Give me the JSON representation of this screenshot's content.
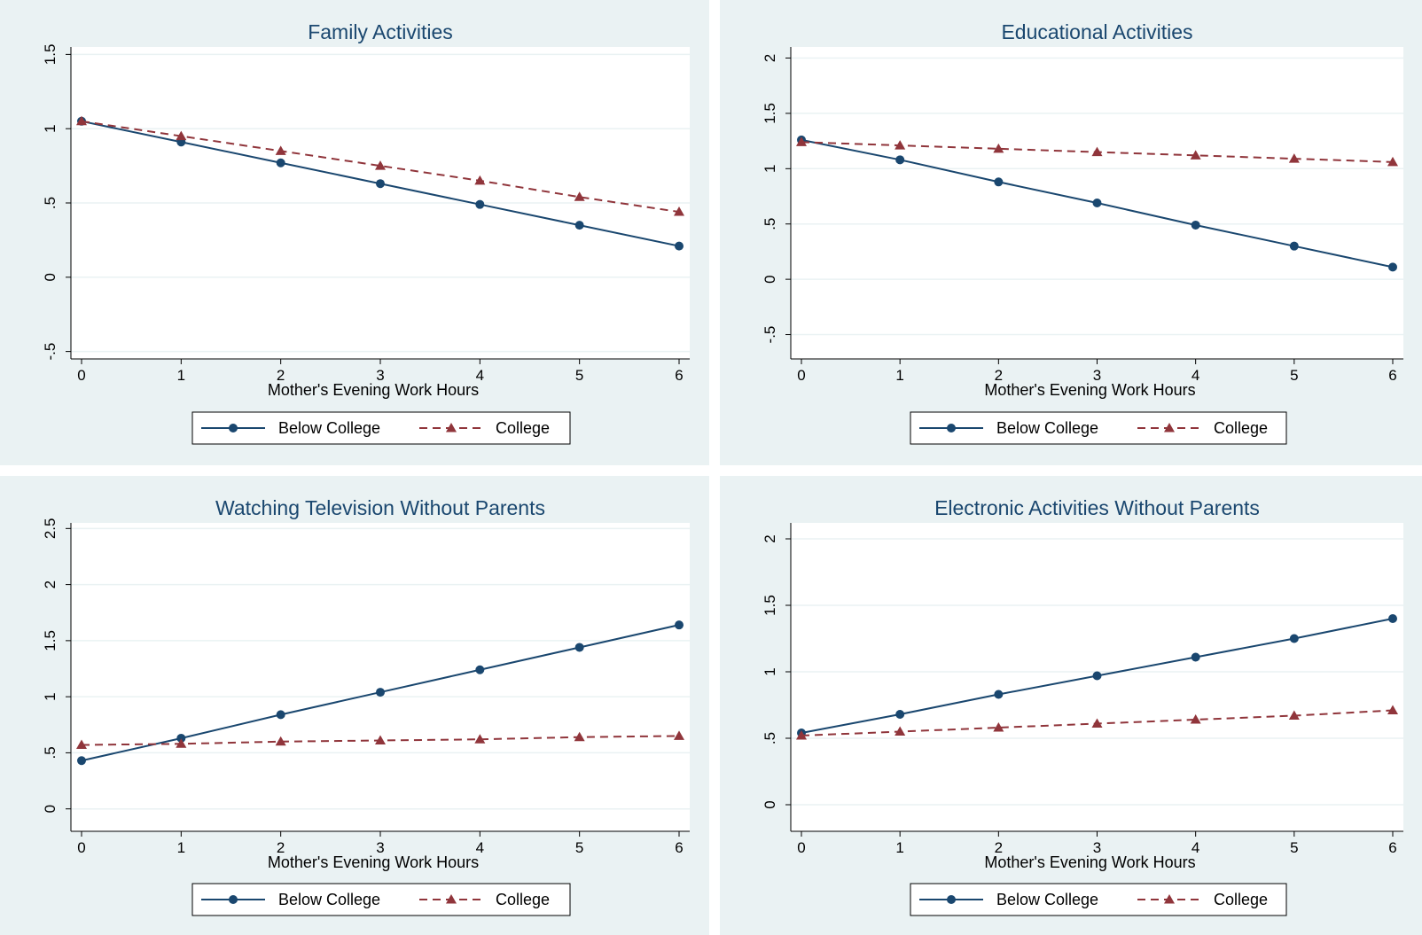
{
  "colors": {
    "below_college": "#1a476f",
    "college": "#90353b",
    "panel_background": "#eaf2f3"
  },
  "chart_data": [
    {
      "type": "line",
      "title": "Family Activities",
      "xlabel": "Mother's Evening Work Hours",
      "ylabel": "",
      "x": [
        0,
        1,
        2,
        3,
        4,
        5,
        6
      ],
      "xticks": [
        "0",
        "1",
        "2",
        "3",
        "4",
        "5",
        "6"
      ],
      "ylim": [
        -0.55,
        1.55
      ],
      "yticks": [
        -0.5,
        0,
        0.5,
        1,
        1.5
      ],
      "ytick_labels": [
        "-.5",
        "0",
        ".5",
        "1",
        "1.5"
      ],
      "grid": true,
      "legend": "bottom",
      "series": [
        {
          "name": "Below College",
          "marker": "circle",
          "dash": "solid",
          "values": [
            1.05,
            0.91,
            0.77,
            0.63,
            0.49,
            0.35,
            0.21
          ]
        },
        {
          "name": "College",
          "marker": "triangle",
          "dash": "dashed",
          "values": [
            1.05,
            0.95,
            0.85,
            0.75,
            0.65,
            0.54,
            0.44
          ]
        }
      ]
    },
    {
      "type": "line",
      "title": "Educational Activities",
      "xlabel": "Mother's Evening Work Hours",
      "ylabel": "",
      "x": [
        0,
        1,
        2,
        3,
        4,
        5,
        6
      ],
      "xticks": [
        "0",
        "1",
        "2",
        "3",
        "4",
        "5",
        "6"
      ],
      "ylim": [
        -0.72,
        2.1
      ],
      "yticks": [
        -0.5,
        0,
        0.5,
        1,
        1.5,
        2
      ],
      "ytick_labels": [
        "-.5",
        "0",
        ".5",
        "1",
        "1.5",
        "2"
      ],
      "grid": true,
      "legend": "bottom",
      "series": [
        {
          "name": "Below College",
          "marker": "circle",
          "dash": "solid",
          "values": [
            1.26,
            1.08,
            0.88,
            0.69,
            0.49,
            0.3,
            0.11
          ]
        },
        {
          "name": "College",
          "marker": "triangle",
          "dash": "dashed",
          "values": [
            1.24,
            1.21,
            1.18,
            1.15,
            1.12,
            1.09,
            1.06
          ]
        }
      ]
    },
    {
      "type": "line",
      "title": "Watching Television Without Parents",
      "xlabel": "Mother's Evening Work Hours",
      "ylabel": "",
      "x": [
        0,
        1,
        2,
        3,
        4,
        5,
        6
      ],
      "xticks": [
        "0",
        "1",
        "2",
        "3",
        "4",
        "5",
        "6"
      ],
      "ylim": [
        -0.2,
        2.55
      ],
      "yticks": [
        0,
        0.5,
        1,
        1.5,
        2,
        2.5
      ],
      "ytick_labels": [
        "0",
        ".5",
        "1",
        "1.5",
        "2",
        "2.5"
      ],
      "grid": true,
      "legend": "bottom",
      "series": [
        {
          "name": "Below College",
          "marker": "circle",
          "dash": "solid",
          "values": [
            0.43,
            0.63,
            0.84,
            1.04,
            1.24,
            1.44,
            1.64
          ]
        },
        {
          "name": "College",
          "marker": "triangle",
          "dash": "dashed",
          "values": [
            0.57,
            0.58,
            0.6,
            0.61,
            0.62,
            0.64,
            0.65
          ]
        }
      ]
    },
    {
      "type": "line",
      "title": "Electronic Activities Without Parents",
      "xlabel": "Mother's Evening Work Hours",
      "ylabel": "",
      "x": [
        0,
        1,
        2,
        3,
        4,
        5,
        6
      ],
      "xticks": [
        "0",
        "1",
        "2",
        "3",
        "4",
        "5",
        "6"
      ],
      "ylim": [
        -0.2,
        2.12
      ],
      "yticks": [
        0,
        0.5,
        1,
        1.5,
        2
      ],
      "ytick_labels": [
        "0",
        ".5",
        "1",
        "1.5",
        "2"
      ],
      "grid": true,
      "legend": "bottom",
      "series": [
        {
          "name": "Below College",
          "marker": "circle",
          "dash": "solid",
          "values": [
            0.54,
            0.68,
            0.83,
            0.97,
            1.11,
            1.25,
            1.4
          ]
        },
        {
          "name": "College",
          "marker": "triangle",
          "dash": "dashed",
          "values": [
            0.52,
            0.55,
            0.58,
            0.61,
            0.64,
            0.67,
            0.71
          ]
        }
      ]
    }
  ]
}
